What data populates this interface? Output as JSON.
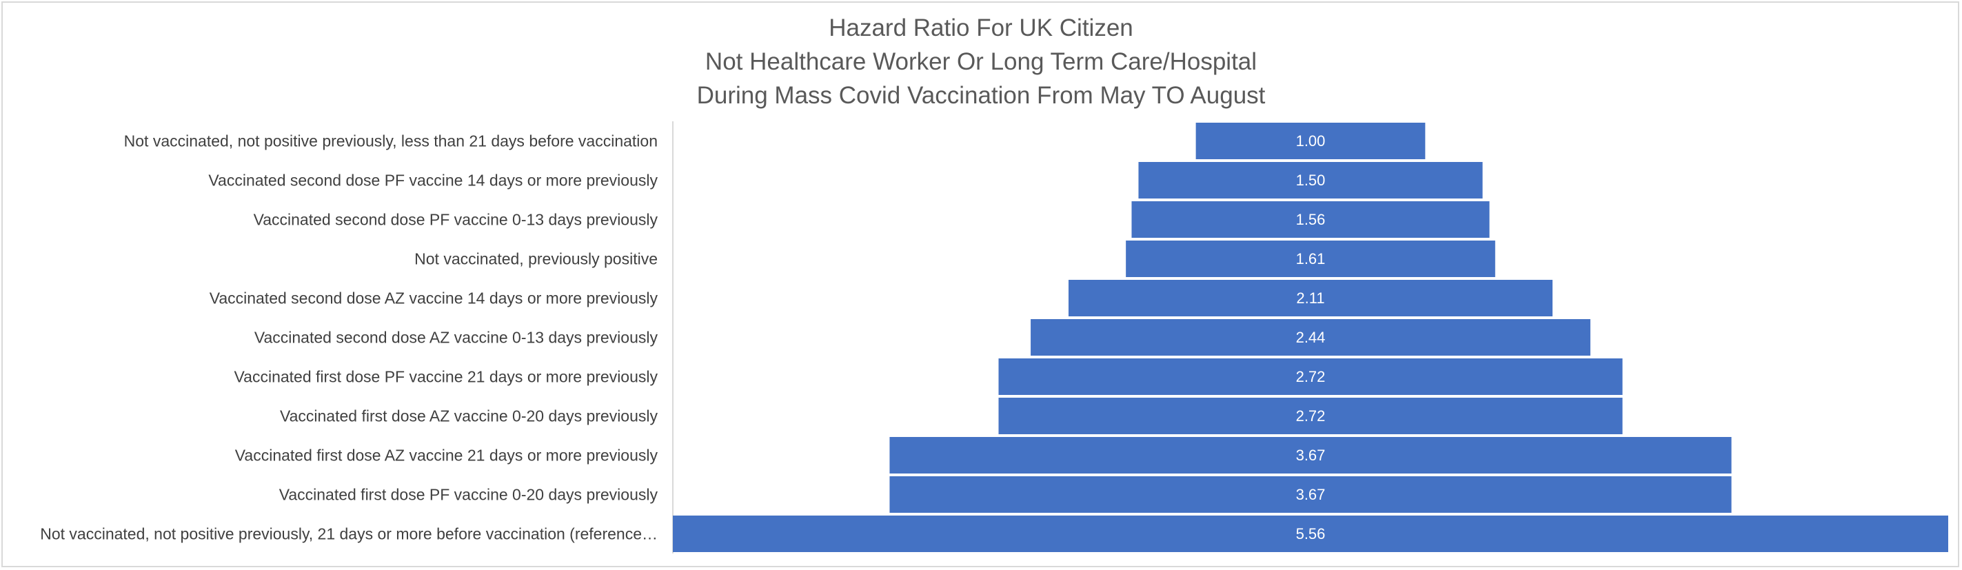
{
  "chart_data": {
    "type": "bar",
    "orientation": "horizontal",
    "style": "centered-funnel",
    "title_lines": [
      "Hazard Ratio For UK Citizen",
      "Not Healthcare Worker Or Long Term Care/Hospital",
      "During Mass Covid Vaccination From May TO August"
    ],
    "categories": [
      "Not vaccinated, not positive previously, less than 21 days before vaccination",
      "Vaccinated second dose PF vaccine 14 days or more previously",
      "Vaccinated second dose PF vaccine 0-13 days previously",
      "Not vaccinated, previously positive",
      "Vaccinated second dose AZ vaccine 14 days or more previously",
      "Vaccinated second dose AZ vaccine 0-13 days previously",
      "Vaccinated first dose PF vaccine 21 days or more previously",
      "Vaccinated first dose AZ vaccine 0-20 days previously",
      "Vaccinated first dose AZ vaccine 21 days or more previously",
      "Vaccinated first dose PF vaccine 0-20 days previously",
      "Not vaccinated, not positive previously, 21 days or more before vaccination (reference…"
    ],
    "values": [
      1.0,
      1.5,
      1.56,
      1.61,
      2.11,
      2.44,
      2.72,
      2.72,
      3.67,
      3.67,
      5.56
    ],
    "value_labels": [
      "1.00",
      "1.50",
      "1.56",
      "1.61",
      "2.11",
      "2.44",
      "2.72",
      "2.72",
      "3.67",
      "3.67",
      "5.56"
    ],
    "bar_color": "#4472c4",
    "axis_line_color": "#d9d9d9",
    "legend": "none",
    "grid": false
  }
}
